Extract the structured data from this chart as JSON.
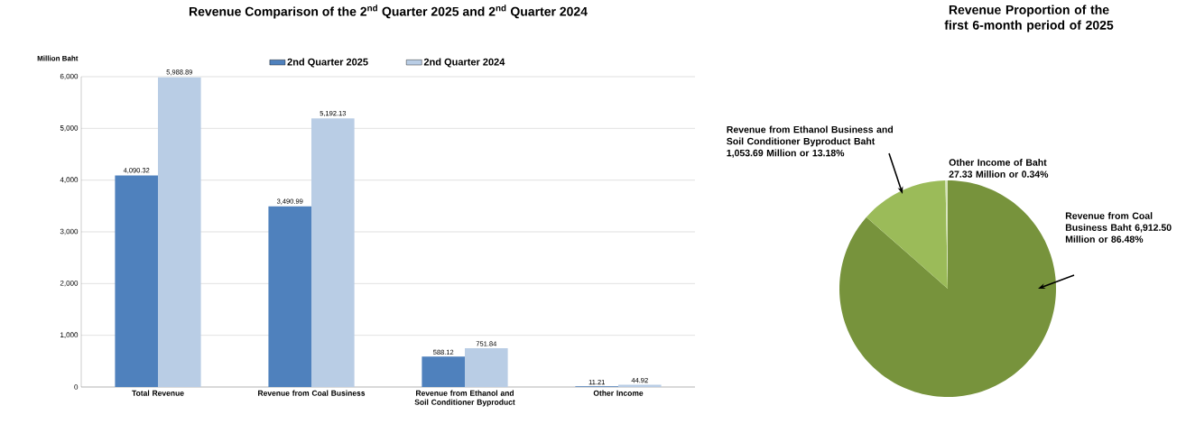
{
  "chart_data": [
    {
      "type": "bar",
      "title": "Revenue Comparison of the 2$^{nd}$ Quarter 2025 and 2$^{nd}$ Quarter 2024",
      "ylabel": "Million Baht",
      "categories": [
        "Total Revenue",
        "Revenue from Coal Business",
        "Revenue from Ethanol and Soil Conditioner Byproduct",
        "Other Income"
      ],
      "series": [
        {
          "name": "2nd Quarter 2025",
          "color": "#4f81bd",
          "values": [
            4090.32,
            3490.99,
            588.12,
            11.21
          ],
          "value_labels": [
            "4,090.32",
            "3,490.99",
            "588.12",
            "11.21"
          ]
        },
        {
          "name": "2nd Quarter 2024",
          "color": "#b9cde5",
          "values": [
            5988.89,
            5192.13,
            751.84,
            44.92
          ],
          "value_labels": [
            "5,988.89",
            "5,192.13",
            "751.84",
            "44.92"
          ]
        }
      ],
      "ylim": [
        0,
        6000
      ],
      "yticks": [
        0,
        {
          "value": 1000,
          "label": "1,000"
        },
        {
          "value": 2000,
          "label": "2,000"
        },
        {
          "value": 3000,
          "label": "3,000"
        },
        {
          "value": 4000,
          "label": "4,000"
        },
        {
          "value": 5000,
          "label": "5,000"
        },
        {
          "value": 6000,
          "label": "6,000"
        }
      ],
      "grid": "y",
      "legend": "top"
    },
    {
      "type": "pie",
      "title": "Revenue Proportion of the first 6-month period of 2025",
      "categories": [
        "Revenue from Coal Business Baht 6,912.50 Million or 86.48%",
        "Revenue from Ethanol Business and Soil Conditioner Byproduct Baht 1,053.69 Million or 13.18%",
        "Other Income of Baht 27.33 Million or 0.34%"
      ],
      "values": [
        86.48,
        13.18,
        0.34
      ],
      "colors": [
        "#77933c",
        "#9bbb59",
        "#d7e4bd"
      ]
    }
  ]
}
